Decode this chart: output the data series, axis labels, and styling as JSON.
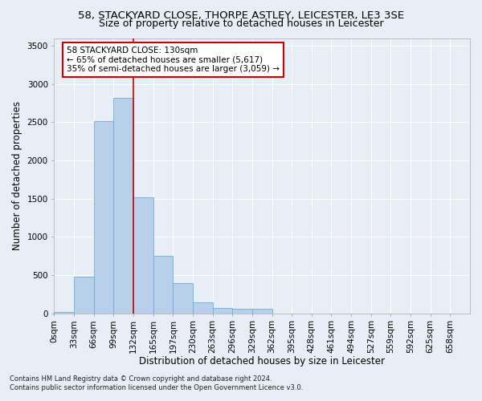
{
  "title": "58, STACKYARD CLOSE, THORPE ASTLEY, LEICESTER, LE3 3SE",
  "subtitle": "Size of property relative to detached houses in Leicester",
  "xlabel": "Distribution of detached houses by size in Leicester",
  "ylabel": "Number of detached properties",
  "footer_line1": "Contains HM Land Registry data © Crown copyright and database right 2024.",
  "footer_line2": "Contains public sector information licensed under the Open Government Licence v3.0.",
  "bin_labels": [
    "0sqm",
    "33sqm",
    "66sqm",
    "99sqm",
    "132sqm",
    "165sqm",
    "197sqm",
    "230sqm",
    "263sqm",
    "296sqm",
    "329sqm",
    "362sqm",
    "395sqm",
    "428sqm",
    "461sqm",
    "494sqm",
    "527sqm",
    "559sqm",
    "592sqm",
    "625sqm",
    "658sqm"
  ],
  "bar_values": [
    20,
    480,
    2510,
    2820,
    1520,
    750,
    390,
    140,
    70,
    55,
    55,
    0,
    0,
    0,
    0,
    0,
    0,
    0,
    0,
    0,
    0
  ],
  "bar_color": "#b8d0ea",
  "bar_edgecolor": "#6baed6",
  "annotation_text": "58 STACKYARD CLOSE: 130sqm\n← 65% of detached houses are smaller (5,617)\n35% of semi-detached houses are larger (3,059) →",
  "annotation_box_color": "#ffffff",
  "annotation_box_edgecolor": "#cc0000",
  "ylim": [
    0,
    3600
  ],
  "yticks": [
    0,
    500,
    1000,
    1500,
    2000,
    2500,
    3000,
    3500
  ],
  "background_color": "#e8eef5",
  "grid_color": "#ffffff",
  "vline_color": "#cc0000",
  "vline_bin": 4,
  "title_fontsize": 9.5,
  "subtitle_fontsize": 9,
  "tick_fontsize": 7.5,
  "ylabel_fontsize": 8.5,
  "xlabel_fontsize": 8.5,
  "annotation_fontsize": 7.5,
  "footer_fontsize": 6
}
